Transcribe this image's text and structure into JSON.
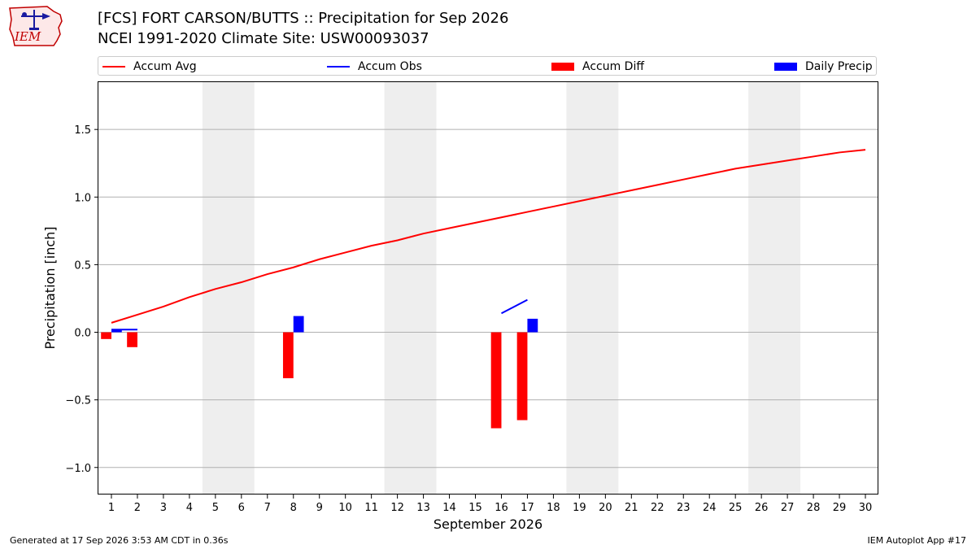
{
  "header": {
    "logo_text": "IEM",
    "title_line1": "[FCS] FORT CARSON/BUTTS :: Precipitation for Sep 2026",
    "title_line2": "NCEI 1991-2020 Climate Site: USW00093037"
  },
  "legend": {
    "items": [
      {
        "label": "Accum Avg",
        "kind": "line",
        "color": "#ff0000"
      },
      {
        "label": "Accum Obs",
        "kind": "line",
        "color": "#0000ff"
      },
      {
        "label": "Accum Diff",
        "kind": "box",
        "color": "#ff0000"
      },
      {
        "label": "Daily Precip",
        "kind": "box",
        "color": "#0000ff"
      }
    ]
  },
  "chart_data": {
    "type": "bar",
    "xlabel": "September 2026",
    "ylabel": "Precipitation [inch]",
    "xlim": [
      0.5,
      30.5
    ],
    "ylim": [
      -1.2,
      1.85
    ],
    "x_ticks": [
      1,
      2,
      3,
      4,
      5,
      6,
      7,
      8,
      9,
      10,
      11,
      12,
      13,
      14,
      15,
      16,
      17,
      18,
      19,
      20,
      21,
      22,
      23,
      24,
      25,
      26,
      27,
      28,
      29,
      30
    ],
    "y_ticks": [
      1.5,
      1.0,
      0.5,
      0.0,
      -0.5,
      -1.0
    ],
    "y_tick_labels": [
      "1.5",
      "1.0",
      "0.5",
      "0.0",
      "−0.5",
      "−1.0"
    ],
    "grid": "horizontal",
    "weekend_shading": [
      [
        4.5,
        6.5
      ],
      [
        11.5,
        13.5
      ],
      [
        18.5,
        20.5
      ],
      [
        25.5,
        27.5
      ]
    ],
    "colors": {
      "avg": "#ff0000",
      "obs": "#0000ff",
      "diff": "#ff0000",
      "daily": "#0000ff",
      "shade": "#eeeeee",
      "grid": "#b0b0b0"
    },
    "accum_avg": {
      "days": [
        1,
        2,
        3,
        4,
        5,
        6,
        7,
        8,
        9,
        10,
        11,
        12,
        13,
        14,
        15,
        16,
        17,
        18,
        19,
        20,
        21,
        22,
        23,
        24,
        25,
        26,
        27,
        28,
        29,
        30
      ],
      "values": [
        0.07,
        0.13,
        0.19,
        0.26,
        0.32,
        0.37,
        0.43,
        0.48,
        0.54,
        0.59,
        0.64,
        0.68,
        0.73,
        0.77,
        0.81,
        0.85,
        0.89,
        0.93,
        0.97,
        1.01,
        1.05,
        1.09,
        1.13,
        1.17,
        1.21,
        1.24,
        1.27,
        1.3,
        1.33,
        1.35
      ]
    },
    "accum_obs": {
      "segments": [
        {
          "days": [
            1,
            2
          ],
          "values": [
            0.02,
            0.02
          ]
        },
        {
          "days": [
            16,
            17
          ],
          "values": [
            0.14,
            0.24
          ]
        }
      ]
    },
    "accum_diff": {
      "days": [
        1,
        2,
        8,
        16,
        17
      ],
      "values": [
        -0.05,
        -0.11,
        -0.34,
        -0.71,
        -0.65
      ]
    },
    "daily_precip": {
      "days": [
        1,
        8,
        17
      ],
      "values": [
        0.02,
        0.12,
        0.1
      ]
    }
  },
  "footer": {
    "left": "Generated at 17 Sep 2026 3:53 AM CDT in 0.36s",
    "right": "IEM Autoplot App #17"
  }
}
